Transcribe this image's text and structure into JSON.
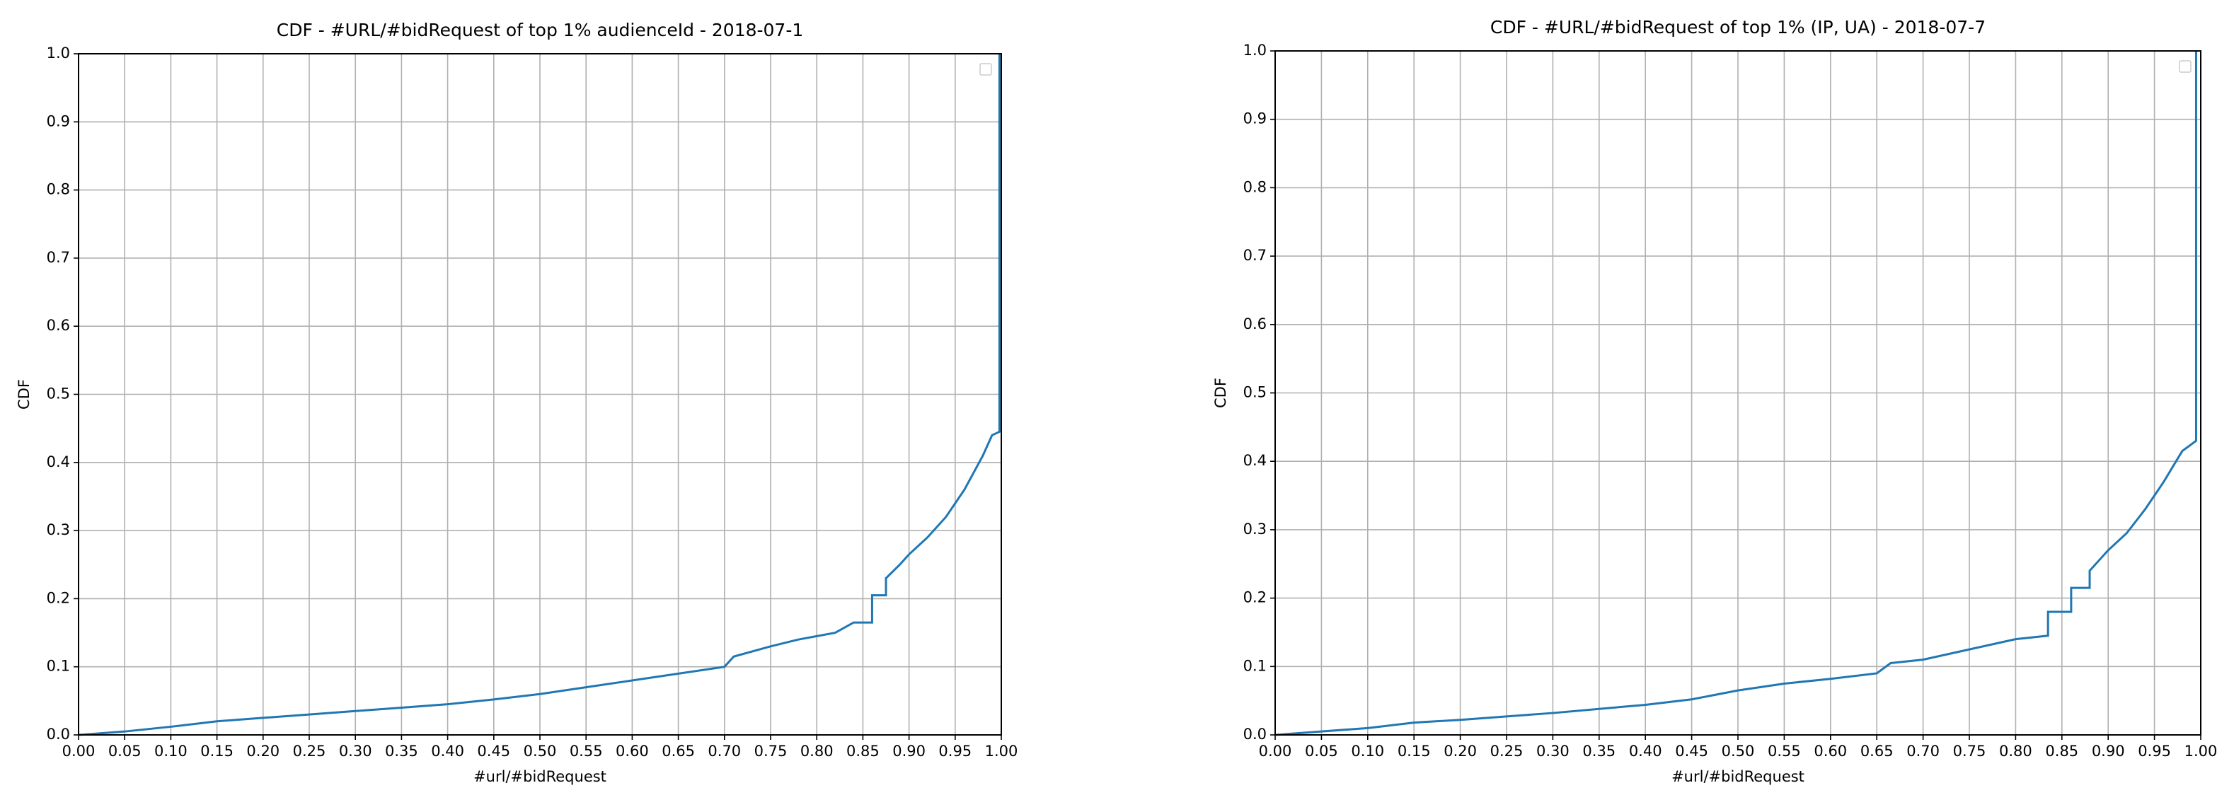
{
  "chart_data": [
    {
      "type": "line",
      "title": "CDF - #URL/#bidRequest of top 1% audienceId - 2018-07-1",
      "xlabel": "#url/#bidRequest",
      "ylabel": "CDF",
      "color": "#1f77b4",
      "grid": true,
      "xlim": [
        0,
        1
      ],
      "ylim": [
        0,
        1
      ],
      "xticks": [
        {
          "value": 0,
          "label": "0.00"
        },
        0.05,
        {
          "value": 0.1,
          "label": "0.10"
        },
        0.15,
        {
          "value": 0.2,
          "label": "0.20"
        },
        0.25,
        {
          "value": 0.3,
          "label": "0.30"
        },
        0.35,
        {
          "value": 0.4,
          "label": "0.40"
        },
        0.45,
        {
          "value": 0.5,
          "label": "0.50"
        },
        0.55,
        {
          "value": 0.6,
          "label": "0.60"
        },
        0.65,
        {
          "value": 0.7,
          "label": "0.70"
        },
        0.75,
        {
          "value": 0.8,
          "label": "0.80"
        },
        0.85,
        {
          "value": 0.9,
          "label": "0.90"
        },
        0.95,
        {
          "value": 1,
          "label": "1.00"
        }
      ],
      "yticks": [
        {
          "value": 0,
          "label": "0.0"
        },
        0.1,
        0.2,
        0.3,
        0.4,
        0.5,
        0.6,
        0.7,
        0.8,
        0.9,
        {
          "value": 1,
          "label": "1.0"
        }
      ],
      "x": [
        0,
        0.05,
        0.1,
        0.15,
        0.2,
        0.25,
        0.3,
        0.35,
        0.4,
        0.45,
        0.5,
        0.55,
        0.6,
        0.65,
        0.7,
        0.71,
        0.75,
        0.78,
        0.82,
        0.84,
        0.86,
        0.86,
        0.875,
        0.875,
        0.89,
        0.9,
        0.92,
        0.94,
        0.96,
        0.98,
        0.99,
        0.998,
        0.998
      ],
      "y": [
        0,
        0.005,
        0.012,
        0.02,
        0.025,
        0.03,
        0.035,
        0.04,
        0.045,
        0.052,
        0.06,
        0.07,
        0.08,
        0.09,
        0.1,
        0.115,
        0.13,
        0.14,
        0.15,
        0.165,
        0.165,
        0.205,
        0.205,
        0.23,
        0.25,
        0.265,
        0.29,
        0.32,
        0.36,
        0.41,
        0.44,
        0.445,
        1
      ]
    },
    {
      "type": "line",
      "title": "CDF - #URL/#bidRequest of top 1% (IP, UA) - 2018-07-7",
      "xlabel": "#url/#bidRequest",
      "ylabel": "CDF",
      "color": "#1f77b4",
      "grid": true,
      "xlim": [
        0,
        1
      ],
      "ylim": [
        0,
        1
      ],
      "xticks": [
        {
          "value": 0,
          "label": "0.00"
        },
        0.05,
        {
          "value": 0.1,
          "label": "0.10"
        },
        0.15,
        {
          "value": 0.2,
          "label": "0.20"
        },
        0.25,
        {
          "value": 0.3,
          "label": "0.30"
        },
        0.35,
        {
          "value": 0.4,
          "label": "0.40"
        },
        0.45,
        {
          "value": 0.5,
          "label": "0.50"
        },
        0.55,
        {
          "value": 0.6,
          "label": "0.60"
        },
        0.65,
        {
          "value": 0.7,
          "label": "0.70"
        },
        0.75,
        {
          "value": 0.8,
          "label": "0.80"
        },
        0.85,
        {
          "value": 0.9,
          "label": "0.90"
        },
        0.95,
        {
          "value": 1,
          "label": "1.00"
        }
      ],
      "yticks": [
        {
          "value": 0,
          "label": "0.0"
        },
        0.1,
        0.2,
        0.3,
        0.4,
        0.5,
        0.6,
        0.7,
        0.8,
        0.9,
        {
          "value": 1,
          "label": "1.0"
        }
      ],
      "x": [
        0,
        0.05,
        0.1,
        0.15,
        0.2,
        0.25,
        0.3,
        0.35,
        0.4,
        0.45,
        0.5,
        0.55,
        0.6,
        0.65,
        0.665,
        0.7,
        0.75,
        0.8,
        0.835,
        0.835,
        0.86,
        0.86,
        0.88,
        0.88,
        0.9,
        0.92,
        0.94,
        0.96,
        0.98,
        0.995,
        0.995
      ],
      "y": [
        0,
        0.005,
        0.01,
        0.018,
        0.022,
        0.027,
        0.032,
        0.038,
        0.044,
        0.052,
        0.065,
        0.075,
        0.082,
        0.09,
        0.105,
        0.11,
        0.125,
        0.14,
        0.145,
        0.18,
        0.18,
        0.215,
        0.215,
        0.24,
        0.27,
        0.295,
        0.33,
        0.37,
        0.415,
        0.43,
        1
      ]
    }
  ]
}
